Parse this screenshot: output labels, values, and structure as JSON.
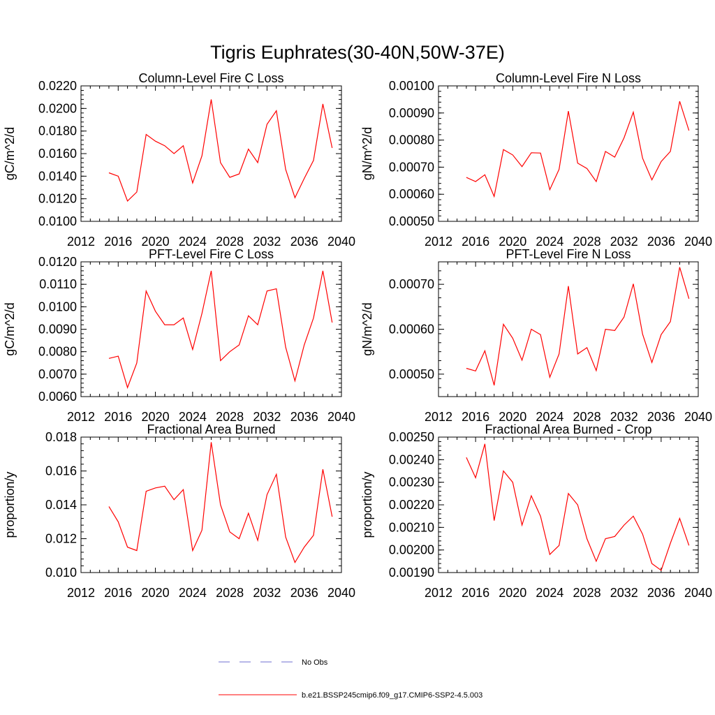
{
  "title": "Tigris Euphrates(30-40N,50W-37E)",
  "colors": {
    "series": "#ff0000",
    "obs": "#6f6fd0",
    "axis": "#000000"
  },
  "legend": {
    "obs_label": "No Obs",
    "model_label": "b.e21.BSSP245cmip6.f09_g17.CMIP6-SSP2-4.5.003"
  },
  "chart_data": [
    {
      "type": "line",
      "title": "Column-Level Fire C Loss",
      "ylabel": "gC/m^2/d",
      "xlim": [
        2012,
        2040
      ],
      "ylim": [
        0.01,
        0.022
      ],
      "x_ticks": [
        "2012",
        "2016",
        "2020",
        "2024",
        "2028",
        "2032",
        "2036",
        "2040"
      ],
      "y_ticks": [
        "0.0100",
        "0.0120",
        "0.0140",
        "0.0160",
        "0.0180",
        "0.0200",
        "0.0220"
      ],
      "x": [
        2015,
        2016,
        2017,
        2018,
        2019,
        2020,
        2021,
        2022,
        2023,
        2024,
        2025,
        2026,
        2027,
        2028,
        2029,
        2030,
        2031,
        2032,
        2033,
        2034,
        2035,
        2036,
        2037,
        2038,
        2039
      ],
      "series": [
        {
          "name": "b.e21.BSSP245cmip6.f09_g17.CMIP6-SSP2-4.5.003",
          "values": [
            0.0143,
            0.014,
            0.0118,
            0.0126,
            0.0177,
            0.0171,
            0.0167,
            0.016,
            0.0167,
            0.0134,
            0.0158,
            0.0208,
            0.0152,
            0.0139,
            0.0142,
            0.0164,
            0.0152,
            0.0186,
            0.0198,
            0.0146,
            0.0121,
            0.0138,
            0.0154,
            0.0204,
            0.0165
          ]
        }
      ]
    },
    {
      "type": "line",
      "title": "Column-Level Fire N Loss",
      "ylabel": "gN/m^2/d",
      "xlim": [
        2012,
        2040
      ],
      "ylim": [
        0.0005,
        0.001
      ],
      "x_ticks": [
        "2012",
        "2016",
        "2020",
        "2024",
        "2028",
        "2032",
        "2036",
        "2040"
      ],
      "y_ticks": [
        "0.00050",
        "0.00060",
        "0.00070",
        "0.00080",
        "0.00090",
        "0.00100"
      ],
      "x": [
        2015,
        2016,
        2017,
        2018,
        2019,
        2020,
        2021,
        2022,
        2023,
        2024,
        2025,
        2026,
        2027,
        2028,
        2029,
        2030,
        2031,
        2032,
        2033,
        2034,
        2035,
        2036,
        2037,
        2038,
        2039
      ],
      "series": [
        {
          "name": "b.e21.BSSP245cmip6.f09_g17.CMIP6-SSP2-4.5.003",
          "values": [
            0.000662,
            0.000647,
            0.000672,
            0.000592,
            0.000765,
            0.000745,
            0.000702,
            0.000753,
            0.000752,
            0.000617,
            0.000692,
            0.000907,
            0.000715,
            0.000695,
            0.000647,
            0.000758,
            0.000737,
            0.000808,
            0.000903,
            0.000733,
            0.000653,
            0.000721,
            0.000758,
            0.000943,
            0.000835
          ]
        }
      ]
    },
    {
      "type": "line",
      "title": "PFT-Level Fire C Loss",
      "ylabel": "gC/m^2/d",
      "xlim": [
        2012,
        2040
      ],
      "ylim": [
        0.006,
        0.012
      ],
      "x_ticks": [
        "2012",
        "2016",
        "2020",
        "2024",
        "2028",
        "2032",
        "2036",
        "2040"
      ],
      "y_ticks": [
        "0.0060",
        "0.0070",
        "0.0080",
        "0.0090",
        "0.0100",
        "0.0110",
        "0.0120"
      ],
      "x": [
        2015,
        2016,
        2017,
        2018,
        2019,
        2020,
        2021,
        2022,
        2023,
        2024,
        2025,
        2026,
        2027,
        2028,
        2029,
        2030,
        2031,
        2032,
        2033,
        2034,
        2035,
        2036,
        2037,
        2038,
        2039
      ],
      "series": [
        {
          "name": "b.e21.BSSP245cmip6.f09_g17.CMIP6-SSP2-4.5.003",
          "values": [
            0.0077,
            0.0078,
            0.0064,
            0.0075,
            0.0107,
            0.0098,
            0.0092,
            0.0092,
            0.0095,
            0.0081,
            0.0097,
            0.0116,
            0.0076,
            0.008,
            0.0083,
            0.0096,
            0.0092,
            0.0107,
            0.0108,
            0.0082,
            0.0067,
            0.0083,
            0.0095,
            0.0116,
            0.0093
          ]
        }
      ]
    },
    {
      "type": "line",
      "title": "PFT-Level Fire N Loss",
      "ylabel": "gN/m^2/d",
      "xlim": [
        2012,
        2040
      ],
      "ylim": [
        0.00045,
        0.00075
      ],
      "x_ticks": [
        "2012",
        "2016",
        "2020",
        "2024",
        "2028",
        "2032",
        "2036",
        "2040"
      ],
      "y_ticks": [
        "0.00050",
        "0.00060",
        "0.00070"
      ],
      "y_tick_values": [
        0.0005,
        0.0006,
        0.0007
      ],
      "x": [
        2015,
        2016,
        2017,
        2018,
        2019,
        2020,
        2021,
        2022,
        2023,
        2024,
        2025,
        2026,
        2027,
        2028,
        2029,
        2030,
        2031,
        2032,
        2033,
        2034,
        2035,
        2036,
        2037,
        2038,
        2039
      ],
      "series": [
        {
          "name": "b.e21.BSSP245cmip6.f09_g17.CMIP6-SSP2-4.5.003",
          "values": [
            0.000513,
            0.000507,
            0.000552,
            0.000475,
            0.000611,
            0.00058,
            0.000531,
            0.0006,
            0.000588,
            0.000493,
            0.000545,
            0.000696,
            0.000545,
            0.000559,
            0.000508,
            0.0006,
            0.000597,
            0.000627,
            0.000701,
            0.000589,
            0.000526,
            0.000588,
            0.000617,
            0.000738,
            0.000668
          ]
        }
      ]
    },
    {
      "type": "line",
      "title": "Fractional Area Burned",
      "ylabel": "proportion/y",
      "xlim": [
        2012,
        2040
      ],
      "ylim": [
        0.01,
        0.018
      ],
      "x_ticks": [
        "2012",
        "2016",
        "2020",
        "2024",
        "2028",
        "2032",
        "2036",
        "2040"
      ],
      "y_ticks": [
        "0.010",
        "0.012",
        "0.014",
        "0.016",
        "0.018"
      ],
      "x": [
        2015,
        2016,
        2017,
        2018,
        2019,
        2020,
        2021,
        2022,
        2023,
        2024,
        2025,
        2026,
        2027,
        2028,
        2029,
        2030,
        2031,
        2032,
        2033,
        2034,
        2035,
        2036,
        2037,
        2038,
        2039
      ],
      "series": [
        {
          "name": "b.e21.BSSP245cmip6.f09_g17.CMIP6-SSP2-4.5.003",
          "values": [
            0.0139,
            0.013,
            0.0115,
            0.0113,
            0.0148,
            0.015,
            0.0151,
            0.0143,
            0.0149,
            0.0113,
            0.0125,
            0.0177,
            0.014,
            0.0124,
            0.012,
            0.0135,
            0.0119,
            0.0146,
            0.0158,
            0.0121,
            0.0106,
            0.0115,
            0.0122,
            0.0161,
            0.0133
          ]
        }
      ]
    },
    {
      "type": "line",
      "title": "Fractional Area Burned - Crop",
      "ylabel": "proportion/y",
      "xlim": [
        2012,
        2040
      ],
      "ylim": [
        0.0019,
        0.0025
      ],
      "x_ticks": [
        "2012",
        "2016",
        "2020",
        "2024",
        "2028",
        "2032",
        "2036",
        "2040"
      ],
      "y_ticks": [
        "0.00190",
        "0.00200",
        "0.00210",
        "0.00220",
        "0.00230",
        "0.00240",
        "0.00250"
      ],
      "x": [
        2015,
        2016,
        2017,
        2018,
        2019,
        2020,
        2021,
        2022,
        2023,
        2024,
        2025,
        2026,
        2027,
        2028,
        2029,
        2030,
        2031,
        2032,
        2033,
        2034,
        2035,
        2036,
        2037,
        2038,
        2039
      ],
      "series": [
        {
          "name": "b.e21.BSSP245cmip6.f09_g17.CMIP6-SSP2-4.5.003",
          "values": [
            0.00241,
            0.00232,
            0.00247,
            0.00213,
            0.00235,
            0.0023,
            0.00211,
            0.00224,
            0.00215,
            0.00198,
            0.00202,
            0.00225,
            0.0022,
            0.00205,
            0.00195,
            0.00205,
            0.00206,
            0.00211,
            0.00215,
            0.00207,
            0.00194,
            0.00191,
            0.00203,
            0.00214,
            0.00202
          ]
        }
      ]
    }
  ]
}
